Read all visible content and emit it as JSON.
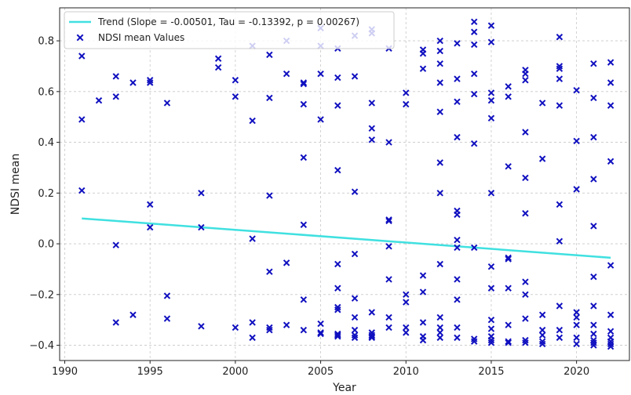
{
  "chart_data": {
    "type": "scatter",
    "xlabel": "Year",
    "ylabel": "NDSI mean",
    "xlim": [
      1989.7,
      2023.1
    ],
    "ylim": [
      -0.46,
      0.93
    ],
    "xticks": [
      1990,
      1995,
      2000,
      2005,
      2010,
      2015,
      2020
    ],
    "yticks": [
      -0.4,
      -0.2,
      0.0,
      0.2,
      0.4,
      0.6,
      0.8
    ],
    "ytick_labels": [
      "−0.4",
      "−0.2",
      "0.0",
      "0.2",
      "0.4",
      "0.6",
      "0.8"
    ],
    "grid": true,
    "legend_position": "top-left",
    "colors": {
      "trend": "#40e0e0",
      "points": "#1010c0",
      "grid": "#c8c8c8"
    },
    "trend": {
      "name": "Trend (Slope = -0.00501, Tau = -0.13392, p = 0.00267)",
      "x": [
        1991,
        2022
      ],
      "y": [
        0.1,
        -0.055
      ]
    },
    "series": [
      {
        "name": "NDSI mean Values",
        "points": [
          [
            1991,
            0.74
          ],
          [
            1991,
            0.49
          ],
          [
            1991,
            0.21
          ],
          [
            1992,
            0.565
          ],
          [
            1993,
            0.66
          ],
          [
            1993,
            0.58
          ],
          [
            1993,
            -0.005
          ],
          [
            1993,
            -0.31
          ],
          [
            1994,
            0.635
          ],
          [
            1994,
            -0.28
          ],
          [
            1995,
            0.645
          ],
          [
            1995,
            0.635
          ],
          [
            1995,
            0.155
          ],
          [
            1995,
            0.065
          ],
          [
            1996,
            0.555
          ],
          [
            1996,
            -0.205
          ],
          [
            1996,
            -0.295
          ],
          [
            1998,
            0.2
          ],
          [
            1998,
            0.065
          ],
          [
            1998,
            -0.325
          ],
          [
            1999,
            0.73
          ],
          [
            1999,
            0.695
          ],
          [
            2000,
            0.645
          ],
          [
            2000,
            0.58
          ],
          [
            2000,
            -0.33
          ],
          [
            2001,
            0.78
          ],
          [
            2001,
            0.485
          ],
          [
            2001,
            0.02
          ],
          [
            2001,
            -0.31
          ],
          [
            2001,
            -0.37
          ],
          [
            2002,
            0.745
          ],
          [
            2002,
            0.575
          ],
          [
            2002,
            0.19
          ],
          [
            2002,
            -0.11
          ],
          [
            2002,
            -0.33
          ],
          [
            2002,
            -0.34
          ],
          [
            2003,
            0.8
          ],
          [
            2003,
            0.67
          ],
          [
            2003,
            -0.075
          ],
          [
            2003,
            -0.32
          ],
          [
            2004,
            0.635
          ],
          [
            2004,
            0.63
          ],
          [
            2004,
            0.55
          ],
          [
            2004,
            0.34
          ],
          [
            2004,
            0.075
          ],
          [
            2004,
            -0.22
          ],
          [
            2004,
            -0.34
          ],
          [
            2005,
            0.85
          ],
          [
            2005,
            0.78
          ],
          [
            2005,
            0.67
          ],
          [
            2005,
            0.49
          ],
          [
            2005,
            -0.315
          ],
          [
            2005,
            -0.35
          ],
          [
            2005,
            -0.355
          ],
          [
            2006,
            0.77
          ],
          [
            2006,
            0.655
          ],
          [
            2006,
            0.545
          ],
          [
            2006,
            0.29
          ],
          [
            2006,
            -0.08
          ],
          [
            2006,
            -0.175
          ],
          [
            2006,
            -0.25
          ],
          [
            2006,
            -0.26
          ],
          [
            2006,
            -0.355
          ],
          [
            2006,
            -0.36
          ],
          [
            2006,
            -0.365
          ],
          [
            2007,
            0.82
          ],
          [
            2007,
            0.66
          ],
          [
            2007,
            0.205
          ],
          [
            2007,
            -0.04
          ],
          [
            2007,
            -0.215
          ],
          [
            2007,
            -0.29
          ],
          [
            2007,
            -0.34
          ],
          [
            2007,
            -0.36
          ],
          [
            2007,
            -0.37
          ],
          [
            2008,
            0.845
          ],
          [
            2008,
            0.83
          ],
          [
            2008,
            0.555
          ],
          [
            2008,
            0.455
          ],
          [
            2008,
            0.41
          ],
          [
            2008,
            -0.27
          ],
          [
            2008,
            -0.35
          ],
          [
            2008,
            -0.36
          ],
          [
            2008,
            -0.365
          ],
          [
            2008,
            -0.37
          ],
          [
            2009,
            0.77
          ],
          [
            2009,
            0.4
          ],
          [
            2009,
            0.095
          ],
          [
            2009,
            0.09
          ],
          [
            2009,
            -0.01
          ],
          [
            2009,
            -0.14
          ],
          [
            2009,
            -0.33
          ],
          [
            2009,
            -0.29
          ],
          [
            2010,
            0.595
          ],
          [
            2010,
            0.55
          ],
          [
            2010,
            -0.2
          ],
          [
            2010,
            -0.23
          ],
          [
            2010,
            -0.33
          ],
          [
            2010,
            -0.35
          ],
          [
            2011,
            0.765
          ],
          [
            2011,
            0.75
          ],
          [
            2011,
            0.69
          ],
          [
            2011,
            -0.125
          ],
          [
            2011,
            -0.19
          ],
          [
            2011,
            -0.31
          ],
          [
            2011,
            -0.365
          ],
          [
            2011,
            -0.38
          ],
          [
            2012,
            0.8
          ],
          [
            2012,
            0.76
          ],
          [
            2012,
            0.71
          ],
          [
            2012,
            0.635
          ],
          [
            2012,
            0.52
          ],
          [
            2012,
            0.32
          ],
          [
            2012,
            0.2
          ],
          [
            2012,
            -0.08
          ],
          [
            2012,
            -0.29
          ],
          [
            2012,
            -0.33
          ],
          [
            2012,
            -0.35
          ],
          [
            2012,
            -0.37
          ],
          [
            2013,
            0.79
          ],
          [
            2013,
            0.65
          ],
          [
            2013,
            0.56
          ],
          [
            2013,
            0.42
          ],
          [
            2013,
            0.13
          ],
          [
            2013,
            0.115
          ],
          [
            2013,
            0.015
          ],
          [
            2013,
            -0.015
          ],
          [
            2013,
            -0.14
          ],
          [
            2013,
            -0.22
          ],
          [
            2013,
            -0.33
          ],
          [
            2013,
            -0.37
          ],
          [
            2014,
            0.875
          ],
          [
            2014,
            0.835
          ],
          [
            2014,
            0.785
          ],
          [
            2014,
            0.67
          ],
          [
            2014,
            0.59
          ],
          [
            2014,
            0.395
          ],
          [
            2014,
            -0.015
          ],
          [
            2014,
            -0.375
          ],
          [
            2014,
            -0.385
          ],
          [
            2015,
            0.86
          ],
          [
            2015,
            0.795
          ],
          [
            2015,
            0.595
          ],
          [
            2015,
            0.565
          ],
          [
            2015,
            0.495
          ],
          [
            2015,
            0.2
          ],
          [
            2015,
            -0.09
          ],
          [
            2015,
            -0.175
          ],
          [
            2015,
            -0.3
          ],
          [
            2015,
            -0.335
          ],
          [
            2015,
            -0.365
          ],
          [
            2015,
            -0.38
          ],
          [
            2015,
            -0.39
          ],
          [
            2016,
            0.62
          ],
          [
            2016,
            0.58
          ],
          [
            2016,
            0.305
          ],
          [
            2016,
            -0.055
          ],
          [
            2016,
            -0.06
          ],
          [
            2016,
            -0.175
          ],
          [
            2016,
            -0.32
          ],
          [
            2016,
            -0.385
          ],
          [
            2016,
            -0.39
          ],
          [
            2017,
            0.685
          ],
          [
            2017,
            0.67
          ],
          [
            2017,
            0.645
          ],
          [
            2017,
            0.44
          ],
          [
            2017,
            0.26
          ],
          [
            2017,
            0.12
          ],
          [
            2017,
            -0.15
          ],
          [
            2017,
            -0.2
          ],
          [
            2017,
            -0.295
          ],
          [
            2017,
            -0.38
          ],
          [
            2017,
            -0.39
          ],
          [
            2018,
            0.555
          ],
          [
            2018,
            0.335
          ],
          [
            2018,
            -0.28
          ],
          [
            2018,
            -0.34
          ],
          [
            2018,
            -0.36
          ],
          [
            2018,
            -0.385
          ],
          [
            2018,
            -0.395
          ],
          [
            2019,
            0.815
          ],
          [
            2019,
            0.7
          ],
          [
            2019,
            0.69
          ],
          [
            2019,
            0.65
          ],
          [
            2019,
            0.545
          ],
          [
            2019,
            0.155
          ],
          [
            2019,
            0.01
          ],
          [
            2019,
            -0.245
          ],
          [
            2019,
            -0.34
          ],
          [
            2019,
            -0.37
          ],
          [
            2020,
            0.605
          ],
          [
            2020,
            0.405
          ],
          [
            2020,
            0.215
          ],
          [
            2020,
            -0.27
          ],
          [
            2020,
            -0.29
          ],
          [
            2020,
            -0.32
          ],
          [
            2020,
            -0.37
          ],
          [
            2020,
            -0.395
          ],
          [
            2021,
            0.71
          ],
          [
            2021,
            0.575
          ],
          [
            2021,
            0.42
          ],
          [
            2021,
            0.255
          ],
          [
            2021,
            0.07
          ],
          [
            2021,
            -0.13
          ],
          [
            2021,
            -0.245
          ],
          [
            2021,
            -0.32
          ],
          [
            2021,
            -0.355
          ],
          [
            2021,
            -0.38
          ],
          [
            2021,
            -0.39
          ],
          [
            2021,
            -0.4
          ],
          [
            2022,
            0.715
          ],
          [
            2022,
            0.635
          ],
          [
            2022,
            0.545
          ],
          [
            2022,
            0.325
          ],
          [
            2022,
            -0.085
          ],
          [
            2022,
            -0.28
          ],
          [
            2022,
            -0.345
          ],
          [
            2022,
            -0.37
          ],
          [
            2022,
            -0.385
          ],
          [
            2022,
            -0.395
          ],
          [
            2022,
            -0.405
          ]
        ]
      }
    ]
  }
}
